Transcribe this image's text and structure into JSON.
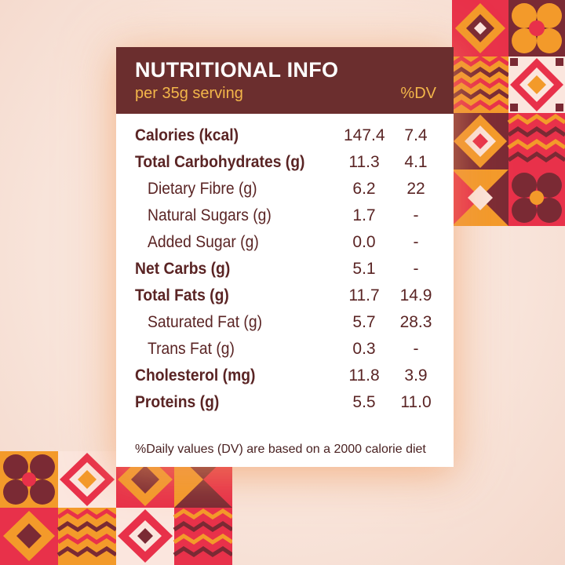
{
  "panel": {
    "title": "NUTRITIONAL INFO",
    "subtitle": "per 35g serving",
    "dv_header": "%DV"
  },
  "rows": [
    {
      "label": "Calories (kcal)",
      "value": "147.4",
      "dv": "7.4"
    },
    {
      "label": "Total Carbohydrates (g)",
      "value": "11.3",
      "dv": "4.1"
    },
    {
      "label": "Dietary Fibre (g)",
      "value": "6.2",
      "dv": "22"
    },
    {
      "label": "Natural Sugars (g)",
      "value": "1.7",
      "dv": "-"
    },
    {
      "label": "Added Sugar (g)",
      "value": "0.0",
      "dv": "-"
    },
    {
      "label": "Net Carbs (g)",
      "value": "5.1",
      "dv": "-"
    },
    {
      "label": "Total Fats (g)",
      "value": "11.7",
      "dv": "14.9"
    },
    {
      "label": "Saturated Fat (g)",
      "value": "5.7",
      "dv": "28.3"
    },
    {
      "label": "Trans Fat (g)",
      "value": "0.3",
      "dv": "-"
    },
    {
      "label": "Cholesterol (mg)",
      "value": "11.8",
      "dv": "3.9"
    },
    {
      "label": "Proteins (g)",
      "value": "5.5",
      "dv": "11.0"
    }
  ],
  "footnote": "%Daily values (DV) are based on a 2000 calorie diet",
  "colors": {
    "header_bg": "#6b2e2e",
    "accent_yellow": "#f3b64a",
    "pattern_red": "#e8314a",
    "pattern_orange": "#f39a2a",
    "pattern_maroon": "#7a2a34"
  }
}
